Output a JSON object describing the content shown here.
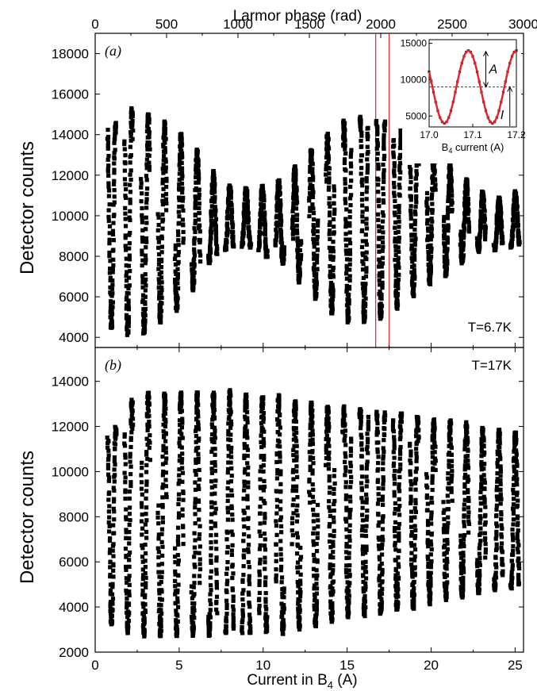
{
  "figure": {
    "top_axis_title": "Larmor phase (rad)",
    "bottom_axis_title_prefix": "Current in B",
    "bottom_axis_title_sub": "4",
    "bottom_axis_title_suffix": " (A)"
  },
  "chart_data": [
    {
      "id": "panel-a",
      "type": "scatter",
      "panel_label": "(a)",
      "temperature_label": "T=6.7K",
      "xlabel": "Current in B4 (A)",
      "ylabel": "Detector counts",
      "top_xlabel": "Larmor phase (rad)",
      "xlim": [
        0,
        25.5
      ],
      "ylim": [
        3500,
        19000
      ],
      "top_xlim": [
        0,
        3000
      ],
      "x_ticks": [
        0,
        5,
        10,
        15,
        20,
        25
      ],
      "y_ticks": [
        4000,
        6000,
        8000,
        10000,
        12000,
        14000,
        16000,
        18000
      ],
      "top_x_ticks": [
        0,
        500,
        1000,
        1500,
        2000,
        2500,
        3000
      ],
      "highlight_band_x": [
        16.7,
        17.5
      ],
      "marker_color": "#000000",
      "band_color": "#e8202a",
      "columns": [
        {
          "x": 1,
          "center": 9500,
          "amplitude": 5000
        },
        {
          "x": 2,
          "center": 9700,
          "amplitude": 5500
        },
        {
          "x": 3,
          "center": 9600,
          "amplitude": 5400
        },
        {
          "x": 4,
          "center": 9700,
          "amplitude": 4900
        },
        {
          "x": 5,
          "center": 9700,
          "amplitude": 4300
        },
        {
          "x": 6,
          "center": 9800,
          "amplitude": 3400
        },
        {
          "x": 7,
          "center": 9900,
          "amplitude": 2200
        },
        {
          "x": 8,
          "center": 9900,
          "amplitude": 1500
        },
        {
          "x": 9,
          "center": 9900,
          "amplitude": 1400
        },
        {
          "x": 10,
          "center": 9700,
          "amplitude": 1700
        },
        {
          "x": 11,
          "center": 9700,
          "amplitude": 2000
        },
        {
          "x": 12,
          "center": 9600,
          "amplitude": 2800
        },
        {
          "x": 13,
          "center": 9600,
          "amplitude": 3600
        },
        {
          "x": 14,
          "center": 9600,
          "amplitude": 4400
        },
        {
          "x": 15,
          "center": 9700,
          "amplitude": 4900
        },
        {
          "x": 16,
          "center": 9800,
          "amplitude": 5000
        },
        {
          "x": 17,
          "center": 9800,
          "amplitude": 4800
        },
        {
          "x": 18,
          "center": 9800,
          "amplitude": 4300
        },
        {
          "x": 19,
          "center": 9800,
          "amplitude": 3700
        },
        {
          "x": 20,
          "center": 9800,
          "amplitude": 3100
        },
        {
          "x": 21,
          "center": 9800,
          "amplitude": 2700
        },
        {
          "x": 22,
          "center": 9700,
          "amplitude": 2000
        },
        {
          "x": 23,
          "center": 9700,
          "amplitude": 1400
        },
        {
          "x": 24,
          "center": 9600,
          "amplitude": 1200
        },
        {
          "x": 25,
          "center": 9800,
          "amplitude": 1300
        }
      ],
      "inset": {
        "type": "line",
        "xlabel_prefix": "B",
        "xlabel_sub": "4",
        "xlabel_suffix": " current (A)",
        "xlim": [
          17.0,
          17.2
        ],
        "ylim": [
          3500,
          15500
        ],
        "x_ticks": [
          "17.0",
          "17.1",
          "17.2"
        ],
        "y_ticks": [
          5000,
          10000,
          15000
        ],
        "mean_level": 9000,
        "amplitude": 5000,
        "period": 0.11,
        "phase_x_of_minimum": 17.035,
        "label_A": "A",
        "label_I": "I",
        "fit_color": "#e8202a",
        "data_color": "#222222"
      }
    },
    {
      "id": "panel-b",
      "type": "scatter",
      "panel_label": "(b)",
      "temperature_label": "T=17K",
      "xlabel": "Current in B4 (A)",
      "ylabel": "Detector counts",
      "xlim": [
        0,
        25.5
      ],
      "ylim": [
        2000,
        15500
      ],
      "x_ticks": [
        0,
        5,
        10,
        15,
        20,
        25
      ],
      "y_ticks": [
        2000,
        4000,
        6000,
        8000,
        10000,
        12000,
        14000
      ],
      "x_tick_labels": [
        "0",
        "5",
        "10",
        "15",
        "20",
        "25"
      ],
      "marker_color": "#000000",
      "columns": [
        {
          "x": 1,
          "center": 7600,
          "amplitude": 4300
        },
        {
          "x": 2,
          "center": 8000,
          "amplitude": 5100
        },
        {
          "x": 3,
          "center": 8100,
          "amplitude": 5300
        },
        {
          "x": 4,
          "center": 8100,
          "amplitude": 5300
        },
        {
          "x": 5,
          "center": 8100,
          "amplitude": 5300
        },
        {
          "x": 6,
          "center": 8100,
          "amplitude": 5300
        },
        {
          "x": 7,
          "center": 8100,
          "amplitude": 5300
        },
        {
          "x": 8,
          "center": 8200,
          "amplitude": 5300
        },
        {
          "x": 9,
          "center": 8100,
          "amplitude": 5300
        },
        {
          "x": 10,
          "center": 8100,
          "amplitude": 5200
        },
        {
          "x": 11,
          "center": 8100,
          "amplitude": 5200
        },
        {
          "x": 12,
          "center": 8100,
          "amplitude": 5000
        },
        {
          "x": 13,
          "center": 8100,
          "amplitude": 4900
        },
        {
          "x": 14,
          "center": 8100,
          "amplitude": 4700
        },
        {
          "x": 15,
          "center": 8200,
          "amplitude": 4600
        },
        {
          "x": 16,
          "center": 8200,
          "amplitude": 4500
        },
        {
          "x": 17,
          "center": 8200,
          "amplitude": 4400
        },
        {
          "x": 18,
          "center": 8200,
          "amplitude": 4300
        },
        {
          "x": 19,
          "center": 8200,
          "amplitude": 4200
        },
        {
          "x": 20,
          "center": 8200,
          "amplitude": 4000
        },
        {
          "x": 21,
          "center": 8300,
          "amplitude": 3900
        },
        {
          "x": 22,
          "center": 8300,
          "amplitude": 3800
        },
        {
          "x": 23,
          "center": 8300,
          "amplitude": 3600
        },
        {
          "x": 24,
          "center": 8300,
          "amplitude": 3500
        },
        {
          "x": 25,
          "center": 8300,
          "amplitude": 3400
        }
      ]
    }
  ]
}
